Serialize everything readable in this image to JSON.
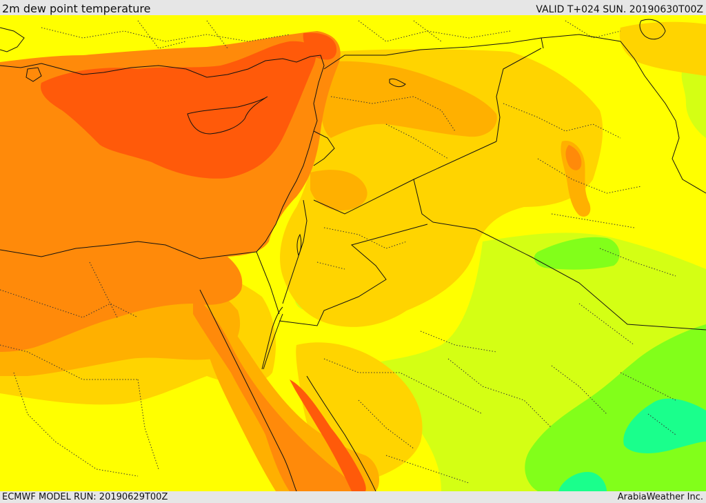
{
  "header": {
    "title": "2m dew point temperature",
    "valid": "VALID T+024 SUN. 20190630T00Z"
  },
  "footer": {
    "model_run": "ECMWF MODEL RUN: 20190629T00Z",
    "credit": "ArabiaWeather Inc."
  },
  "legend_colors": {
    "red_orange": "#ff5a0a",
    "orange": "#ff8a0a",
    "light_orange": "#ffb000",
    "gold": "#ffd400",
    "yellow": "#ffff00",
    "yellow_green": "#d4ff14",
    "lime": "#82ff1a",
    "spring_green": "#1aff8c"
  }
}
